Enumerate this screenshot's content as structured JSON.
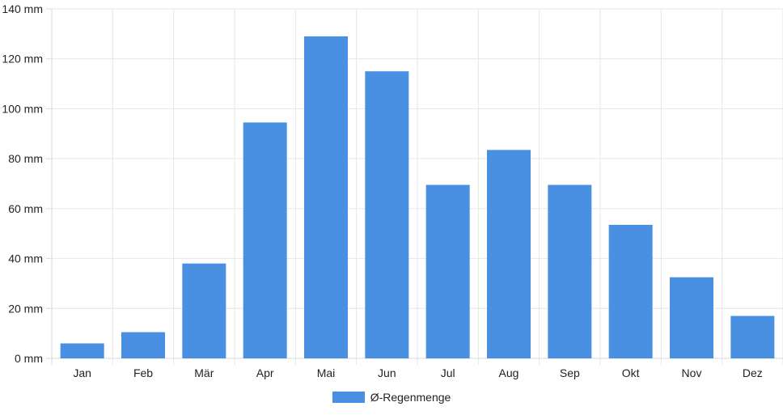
{
  "chart_data": {
    "type": "bar",
    "title": "",
    "xlabel": "",
    "ylabel": "",
    "categories": [
      "Jan",
      "Feb",
      "Mär",
      "Apr",
      "Mai",
      "Jun",
      "Jul",
      "Aug",
      "Sep",
      "Okt",
      "Nov",
      "Dez"
    ],
    "series": [
      {
        "name": "Ø-Regenmenge",
        "color": "#4a90e2",
        "values": [
          6,
          10.5,
          38,
          94.5,
          129,
          115,
          69.5,
          83.5,
          69.5,
          53.5,
          32.5,
          17
        ]
      }
    ],
    "ylim": [
      0,
      140
    ],
    "yticks": [
      "0 mm",
      "20 mm",
      "40 mm",
      "60 mm",
      "80 mm",
      "100 mm",
      "120 mm",
      "140 mm"
    ],
    "grid": true,
    "legend_position": "bottom"
  }
}
